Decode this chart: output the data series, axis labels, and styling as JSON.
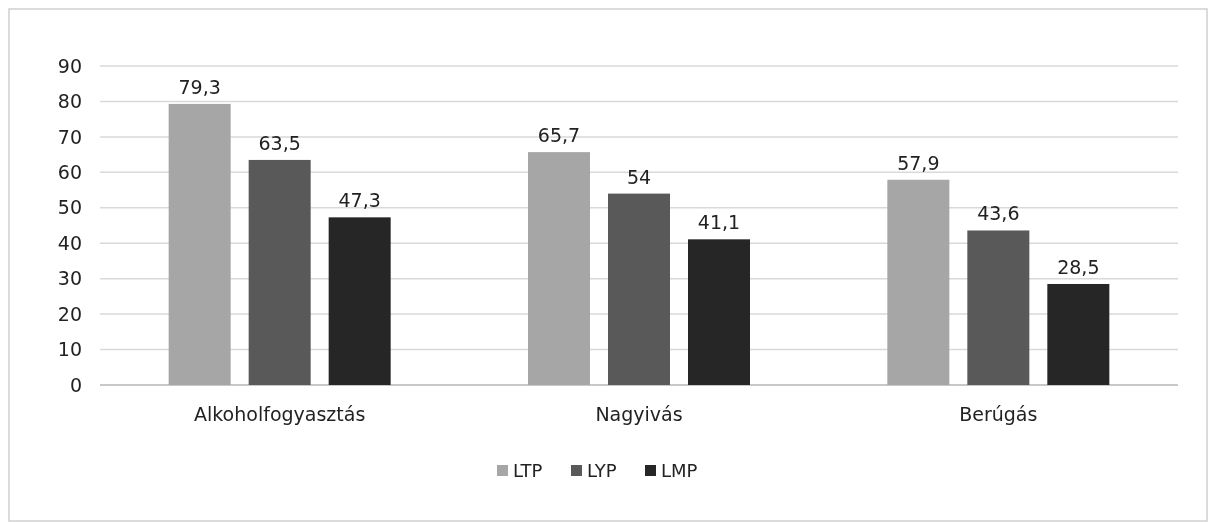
{
  "chart_data": {
    "type": "bar",
    "categories": [
      "Alkoholfogyasztás",
      "Nagyivás",
      "Berúgás"
    ],
    "series": [
      {
        "name": "LTP",
        "color": "#a6a6a6",
        "values": [
          79.3,
          65.7,
          57.9
        ],
        "value_labels": [
          "79,3",
          "65,7",
          "57,9"
        ]
      },
      {
        "name": "LYP",
        "color": "#595959",
        "values": [
          63.5,
          54,
          43.6
        ],
        "value_labels": [
          "63,5",
          "54",
          "43,6"
        ]
      },
      {
        "name": "LMP",
        "color": "#262626",
        "values": [
          47.3,
          41.1,
          28.5
        ],
        "value_labels": [
          "47,3",
          "41,1",
          "28,5"
        ]
      }
    ],
    "ylim": [
      0,
      90
    ],
    "yticks": [
      0,
      10,
      20,
      30,
      40,
      50,
      60,
      70,
      80,
      90
    ],
    "grid": "y",
    "legend": "bottom"
  }
}
